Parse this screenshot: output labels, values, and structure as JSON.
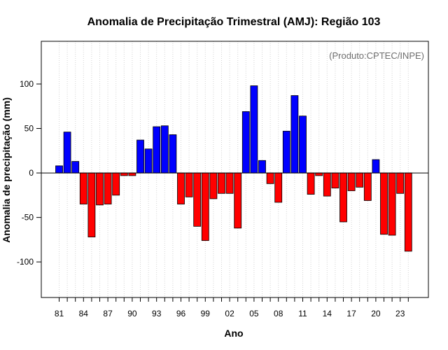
{
  "chart_data": {
    "type": "bar",
    "title": "Anomalia de Precipitação Trimestral (AMJ): Região 103",
    "annotation": "(Produto:CPTEC/INPE)",
    "xlabel": "Ano",
    "ylabel": "Anomalia de precipitação (mm)",
    "ylim": [
      -140,
      148
    ],
    "yticks": [
      -100,
      -50,
      0,
      50,
      100
    ],
    "x_tick_labels": [
      "81",
      "84",
      "87",
      "90",
      "93",
      "96",
      "99",
      "02",
      "05",
      "08",
      "11",
      "14",
      "17",
      "20",
      "23"
    ],
    "categories": [
      "1981",
      "1982",
      "1983",
      "1984",
      "1985",
      "1986",
      "1987",
      "1988",
      "1989",
      "1990",
      "1991",
      "1992",
      "1993",
      "1994",
      "1995",
      "1996",
      "1997",
      "1998",
      "1999",
      "2000",
      "2001",
      "2002",
      "2003",
      "2004",
      "2005",
      "2006",
      "2007",
      "2008",
      "2009",
      "2010",
      "2011",
      "2012",
      "2013",
      "2014",
      "2015",
      "2016",
      "2017",
      "2018",
      "2019",
      "2020",
      "2021",
      "2022",
      "2023",
      "2024"
    ],
    "values": [
      8,
      46,
      13,
      -35,
      -72,
      -36,
      -35,
      -25,
      -3,
      -3,
      37,
      27,
      52,
      53,
      43,
      -35,
      -27,
      -60,
      -76,
      -29,
      -23,
      -23,
      -62,
      69,
      98,
      14,
      -12,
      -33,
      47,
      87,
      64,
      -24,
      -3,
      -26,
      -17,
      -55,
      -20,
      -16,
      -31,
      15,
      -69,
      -70,
      -23,
      -88
    ],
    "colors": {
      "positive": "#0000ff",
      "negative": "#ff0000",
      "grid": "#d3d3d3"
    },
    "grid": true
  }
}
